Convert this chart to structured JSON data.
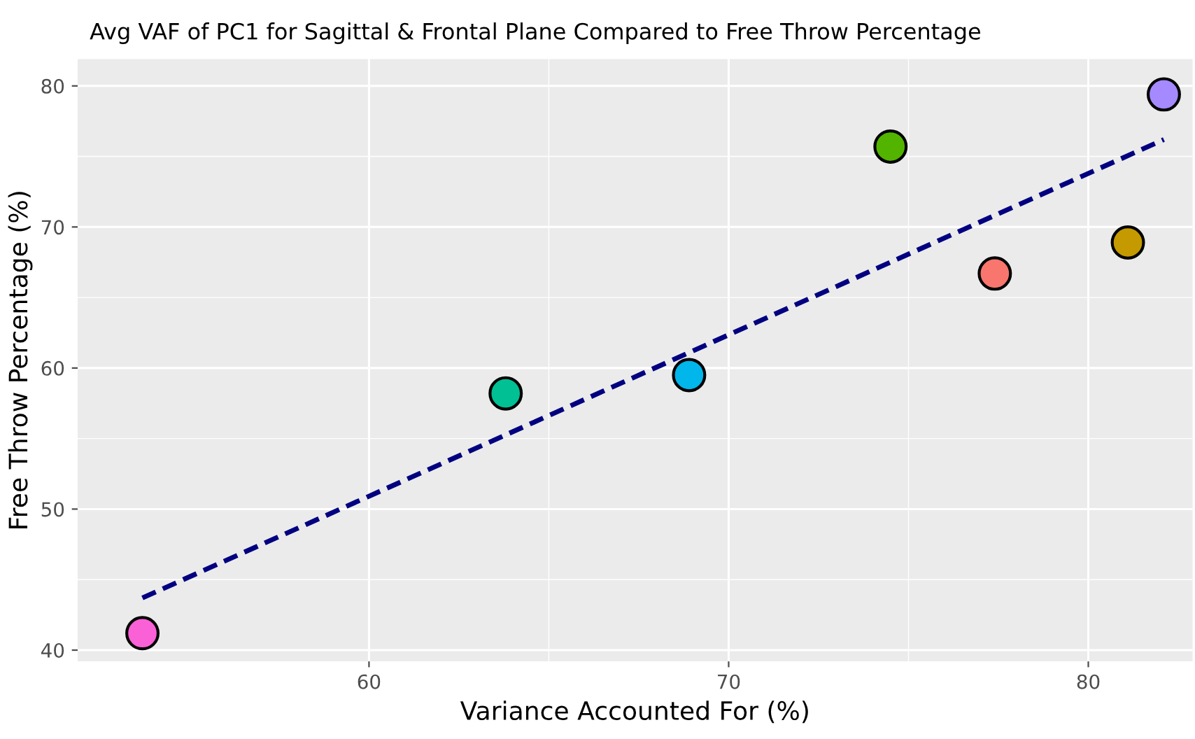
{
  "chart_data": {
    "type": "scatter",
    "title": "Avg VAF of PC1 for Sagittal & Frontal Plane Compared to Free Throw Percentage",
    "xlabel": "Variance Accounted For (%)",
    "ylabel": "Free Throw Percentage (%)",
    "series": [
      {
        "x": [
          53.7,
          63.8,
          68.9,
          74.5,
          77.4,
          81.1,
          82.1
        ],
        "values": [
          41.2,
          58.2,
          59.5,
          75.7,
          66.7,
          68.9,
          79.4
        ],
        "colors": [
          "#fb61d7",
          "#00c094",
          "#00b6eb",
          "#53b400",
          "#f8766d",
          "#c49a00",
          "#a58aff"
        ],
        "marker": "circle"
      },
      {
        "type": "line",
        "x": [
          53.7,
          82.1
        ],
        "values": [
          43.7,
          76.2
        ],
        "color": "#000080",
        "line_style": "dashed",
        "marker": "none"
      }
    ],
    "xlim": [
      51.9,
      82.9
    ],
    "ylim": [
      39.2,
      81.9
    ],
    "xticks": [
      60,
      70,
      80
    ],
    "yticks": [
      40,
      50,
      60,
      70,
      80
    ],
    "grid": true,
    "legend": false
  }
}
